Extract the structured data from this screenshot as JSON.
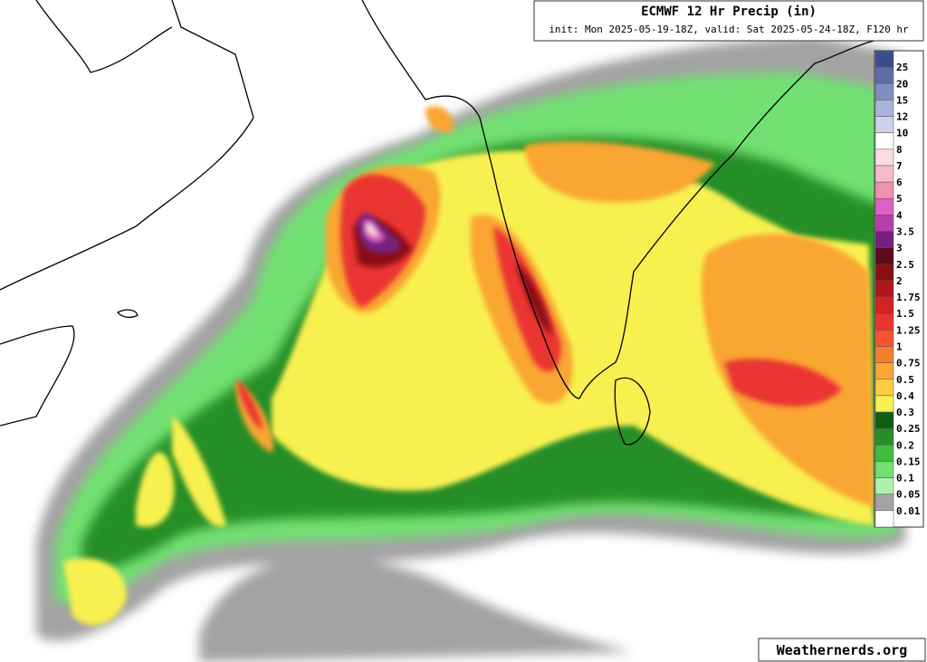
{
  "header": {
    "title": "ECMWF 12 Hr Precip (in)",
    "subtitle": "init: Mon 2025-05-19-18Z, valid: Sat 2025-05-24-18Z, F120 hr"
  },
  "legend": {
    "labels": [
      "25",
      "20",
      "15",
      "12",
      "10",
      "8",
      "7",
      "6",
      "5",
      "4",
      "3.5",
      "3",
      "2.5",
      "2",
      "1.75",
      "1.5",
      "1.25",
      "1",
      "0.75",
      "0.5",
      "0.4",
      "0.3",
      "0.25",
      "0.2",
      "0.15",
      "0.1",
      "0.05",
      "0.01"
    ],
    "colors": [
      "#3b4d8a",
      "#5b6ca6",
      "#7f8fc2",
      "#a9b2d8",
      "#cdd1ea",
      "#ffffff",
      "#fbdde0",
      "#f5bcc6",
      "#f291ad",
      "#e05fc2",
      "#b43fb0",
      "#74207f",
      "#5c0a1c",
      "#8a0f12",
      "#b0171b",
      "#d42222",
      "#ea3430",
      "#f25530",
      "#f57e2a",
      "#f9a633",
      "#fbcd42",
      "#f8f04f",
      "#0f5e12",
      "#278e27",
      "#3fbe3f",
      "#72e072",
      "#aef2ae",
      "#a3a3a3",
      "#ffffff"
    ]
  },
  "watermark": "Weathernerds.org"
}
